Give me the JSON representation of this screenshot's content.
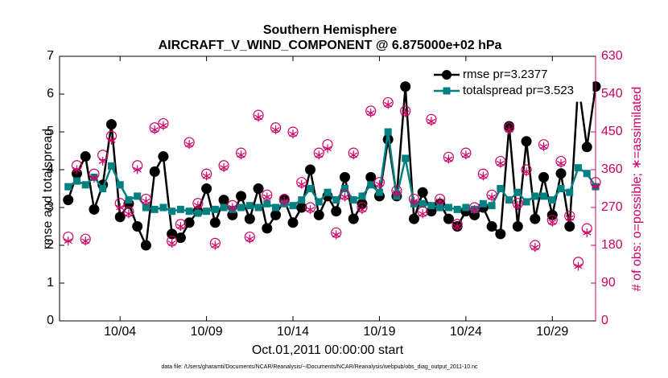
{
  "chart_data": {
    "type": "line",
    "title": "Southern Hemisphere",
    "subtitle": "AIRCRAFT_V_WIND_COMPONENT @ 6.875000e+02 hPa",
    "xlabel": "Oct.01,2011 00:00:00 start",
    "ylabel": "rmse and totalspread",
    "y2label": "# of obs: o=possible; ∗=assimilated",
    "footnote": "data file: /Users/gharamti/Documents/NCAR/Reanalysis/~/Documents/NCAR/Reanalysis/webpub/obs_diag_output_2011-10.nc",
    "x": [
      0,
      0.5,
      1,
      1.5,
      2,
      2.5,
      3,
      3.5,
      4,
      4.5,
      5,
      5.5,
      6,
      6.5,
      7,
      7.5,
      8,
      8.5,
      9,
      9.5,
      10,
      10.5,
      11,
      11.5,
      12,
      12.5,
      13,
      13.5,
      14,
      14.5,
      15,
      15.5,
      16,
      16.5,
      17,
      17.5,
      18,
      18.5,
      19,
      19.5,
      20,
      20.5,
      21,
      21.5,
      22,
      22.5,
      23,
      23.5,
      24,
      24.5,
      25,
      25.5,
      26,
      26.5,
      27,
      27.5,
      28,
      28.5,
      29,
      29.5,
      30,
      30.5
    ],
    "xlim": [
      -0.5,
      30.5
    ],
    "xticks": [
      {
        "value": 3,
        "label": "10/04"
      },
      {
        "value": 8,
        "label": "10/09"
      },
      {
        "value": 13,
        "label": "10/14"
      },
      {
        "value": 18,
        "label": "10/19"
      },
      {
        "value": 23,
        "label": "10/24"
      },
      {
        "value": 28,
        "label": "10/29"
      }
    ],
    "ylim": [
      0,
      7
    ],
    "yticks": [
      0,
      1,
      2,
      3,
      4,
      5,
      6,
      7
    ],
    "y2lim": [
      0,
      630
    ],
    "y2ticks": [
      0,
      90,
      180,
      270,
      360,
      450,
      540,
      630
    ],
    "legend": "upper right",
    "series": [
      {
        "name": "rmse pr=3.2377",
        "color": "#000000",
        "marker": "circle",
        "values": [
          3.2,
          3.9,
          4.35,
          2.95,
          3.6,
          5.2,
          2.75,
          3.1,
          2.5,
          2.0,
          3.95,
          4.35,
          2.3,
          2.2,
          2.6,
          2.9,
          3.5,
          2.6,
          3.2,
          2.8,
          3.3,
          2.7,
          3.5,
          2.45,
          2.8,
          3.2,
          2.6,
          3.0,
          4.0,
          2.8,
          3.3,
          2.9,
          3.8,
          2.7,
          3.1,
          3.8,
          3.3,
          4.8,
          3.3,
          6.2,
          2.7,
          3.4,
          2.9,
          3.1,
          2.7,
          2.5,
          2.9,
          2.8,
          3.0,
          2.5,
          2.3,
          5.15,
          2.5,
          4.75,
          2.7,
          3.8,
          2.8,
          3.9,
          2.5,
          6.3,
          4.6,
          6.2
        ]
      },
      {
        "name": "totalspread pr=3.523",
        "color": "#008080",
        "marker": "square",
        "values": [
          3.55,
          3.7,
          3.6,
          3.8,
          3.5,
          4.1,
          3.6,
          3.2,
          3.3,
          3.0,
          2.95,
          3.0,
          2.9,
          2.95,
          2.9,
          2.85,
          2.9,
          2.95,
          3.0,
          2.95,
          3.0,
          3.05,
          3.0,
          3.1,
          3.0,
          3.1,
          3.05,
          3.2,
          3.5,
          3.15,
          3.4,
          3.2,
          3.5,
          3.2,
          3.3,
          3.6,
          3.4,
          5.0,
          3.3,
          4.3,
          3.1,
          3.1,
          3.05,
          3.0,
          3.0,
          2.95,
          3.0,
          2.95,
          3.1,
          3.05,
          3.5,
          3.2,
          3.4,
          3.15,
          3.3,
          3.3,
          3.2,
          3.5,
          3.4,
          4.05,
          3.9,
          3.55
        ]
      },
      {
        "name": "possible",
        "color": "#cc0066",
        "marker": "open-circle",
        "axis": "y2",
        "values": [
          200,
          370,
          195,
          350,
          395,
          440,
          280,
          260,
          370,
          290,
          460,
          470,
          190,
          230,
          425,
          280,
          350,
          185,
          370,
          275,
          400,
          200,
          490,
          300,
          460,
          290,
          450,
          330,
          270,
          400,
          420,
          210,
          300,
          400,
          270,
          500,
          330,
          520,
          310,
          500,
          290,
          260,
          480,
          290,
          390,
          230,
          400,
          270,
          350,
          300,
          380,
          460,
          280,
          360,
          180,
          420,
          240,
          380,
          250,
          140,
          220,
          330
        ]
      },
      {
        "name": "assimilated",
        "color": "#cc0066",
        "marker": "asterisk",
        "axis": "y2",
        "values": [
          190,
          360,
          190,
          340,
          380,
          430,
          270,
          255,
          360,
          285,
          455,
          465,
          185,
          225,
          420,
          275,
          345,
          180,
          365,
          270,
          395,
          195,
          485,
          295,
          455,
          285,
          445,
          325,
          265,
          395,
          410,
          205,
          295,
          395,
          265,
          495,
          325,
          515,
          305,
          495,
          285,
          255,
          475,
          285,
          385,
          225,
          395,
          265,
          345,
          295,
          375,
          455,
          275,
          355,
          175,
          415,
          235,
          375,
          245,
          130,
          210,
          320
        ]
      }
    ]
  }
}
